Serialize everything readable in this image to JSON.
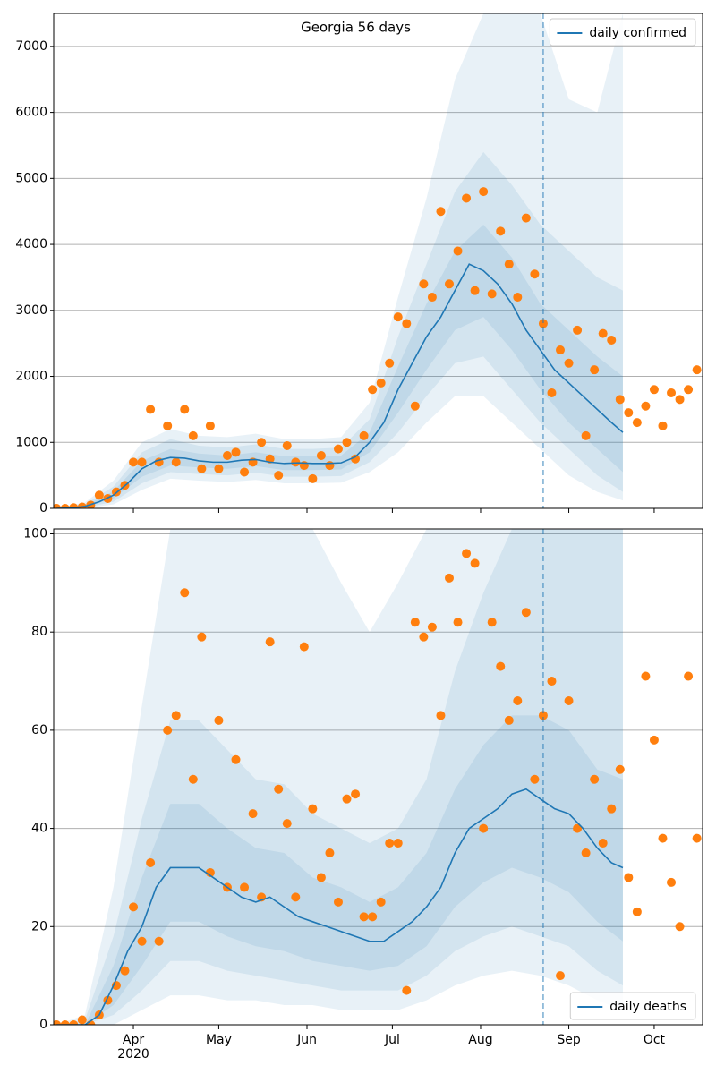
{
  "chart_data": [
    {
      "type": "line",
      "title": "Georgia 56 days",
      "xlim": [
        -1,
        227
      ],
      "xticks": [
        27,
        57,
        88,
        118,
        149,
        180,
        210
      ],
      "xtick_labels": false,
      "ylim": [
        0,
        7500
      ],
      "yticks": [
        0,
        1000,
        2000,
        3000,
        4000,
        5000,
        6000,
        7000
      ],
      "grid": true,
      "legend": "upper right",
      "vline": {
        "x": 171,
        "color": "#1f77b4"
      },
      "bands": [
        {
          "color": "#1f77b4",
          "x": [
            0,
            10,
            20,
            30,
            40,
            50,
            60,
            70,
            80,
            90,
            100,
            110,
            120,
            130,
            140,
            150,
            160,
            170,
            180,
            190,
            199
          ],
          "lower": [
            0,
            5,
            60,
            280,
            450,
            420,
            400,
            430,
            380,
            380,
            390,
            550,
            850,
            1300,
            1700,
            1700,
            1300,
            900,
            500,
            250,
            120
          ],
          "upper": [
            0,
            90,
            420,
            1000,
            1200,
            1100,
            1080,
            1130,
            1050,
            1050,
            1080,
            1600,
            3200,
            4700,
            6500,
            7500,
            7500,
            7500,
            6200,
            6000,
            7500
          ]
        },
        {
          "color": "#1f77b4",
          "x": [
            0,
            10,
            20,
            30,
            40,
            50,
            60,
            70,
            80,
            90,
            100,
            110,
            120,
            130,
            140,
            150,
            160,
            170,
            180,
            190,
            199
          ],
          "lower": [
            0,
            10,
            100,
            380,
            550,
            520,
            500,
            540,
            480,
            480,
            490,
            700,
            1150,
            1700,
            2200,
            2300,
            1800,
            1300,
            900,
            500,
            250
          ],
          "upper": [
            0,
            60,
            330,
            850,
            1050,
            950,
            920,
            970,
            900,
            900,
            920,
            1350,
            2600,
            3700,
            4800,
            5400,
            4900,
            4300,
            3900,
            3500,
            3300
          ]
        },
        {
          "color": "#1f77b4",
          "x": [
            0,
            10,
            20,
            30,
            40,
            50,
            60,
            70,
            80,
            90,
            100,
            110,
            120,
            130,
            140,
            150,
            160,
            170,
            180,
            190,
            199
          ],
          "lower": [
            0,
            20,
            150,
            480,
            650,
            620,
            600,
            640,
            580,
            580,
            590,
            850,
            1450,
            2100,
            2700,
            2900,
            2400,
            1800,
            1300,
            900,
            550
          ],
          "upper": [
            0,
            40,
            260,
            720,
            900,
            830,
            800,
            850,
            790,
            790,
            800,
            1150,
            2150,
            3100,
            3900,
            4300,
            3800,
            3100,
            2700,
            2300,
            2000
          ]
        }
      ],
      "series": [
        {
          "name": "daily confirmed",
          "type": "line",
          "color": "#1f77b4",
          "x": [
            0,
            5,
            10,
            15,
            20,
            25,
            30,
            35,
            40,
            45,
            50,
            55,
            60,
            65,
            70,
            75,
            80,
            85,
            90,
            95,
            100,
            105,
            110,
            115,
            120,
            125,
            130,
            135,
            140,
            145,
            150,
            155,
            160,
            165,
            170,
            175,
            180,
            185,
            190,
            195,
            199
          ],
          "values": [
            0,
            5,
            30,
            100,
            200,
            380,
            600,
            720,
            770,
            760,
            720,
            700,
            700,
            730,
            740,
            700,
            680,
            690,
            680,
            680,
            690,
            780,
            1000,
            1300,
            1800,
            2200,
            2600,
            2900,
            3300,
            3700,
            3600,
            3400,
            3100,
            2700,
            2400,
            2100,
            1900,
            1700,
            1500,
            1300,
            1150
          ]
        },
        {
          "type": "scatter",
          "color": "#ff7f0e",
          "x": [
            0,
            3,
            6,
            9,
            12,
            15,
            18,
            21,
            24,
            27,
            30,
            33,
            36,
            39,
            42,
            45,
            48,
            51,
            54,
            57,
            60,
            63,
            66,
            69,
            72,
            75,
            78,
            81,
            84,
            87,
            90,
            93,
            96,
            99,
            102,
            105,
            108,
            111,
            114,
            117,
            120,
            123,
            126,
            129,
            132,
            135,
            138,
            141,
            144,
            147,
            150,
            153,
            156,
            159,
            162,
            165,
            168,
            171,
            174,
            177,
            180,
            183,
            186,
            189,
            192,
            195,
            198,
            201,
            204,
            207,
            210,
            213,
            216,
            219,
            222,
            225
          ],
          "values": [
            0,
            0,
            10,
            20,
            50,
            200,
            150,
            250,
            350,
            700,
            700,
            1500,
            700,
            1250,
            700,
            1500,
            1100,
            600,
            1250,
            600,
            800,
            850,
            550,
            700,
            1000,
            750,
            500,
            950,
            700,
            650,
            450,
            800,
            650,
            900,
            1000,
            750,
            1100,
            1800,
            1900,
            2200,
            2900,
            2800,
            1550,
            3400,
            3200,
            4500,
            3400,
            3900,
            4700,
            3300,
            4800,
            3250,
            4200,
            3700,
            3200,
            4400,
            3550,
            2800,
            1750,
            2400,
            2200,
            2700,
            1100,
            2100,
            2650,
            2550,
            1650,
            1450,
            1300,
            1550,
            1800,
            1250,
            1750,
            1650,
            1800,
            2100
          ]
        }
      ]
    },
    {
      "type": "line",
      "xlim": [
        -1,
        227
      ],
      "xticks": [
        {
          "value": 27,
          "label": "Apr"
        },
        {
          "value": 57,
          "label": "May"
        },
        {
          "value": 88,
          "label": "Jun"
        },
        {
          "value": 118,
          "label": "Jul"
        },
        {
          "value": 149,
          "label": "Aug"
        },
        {
          "value": 180,
          "label": "Sep"
        },
        {
          "value": 210,
          "label": "Oct"
        }
      ],
      "x_sublabel": "2020",
      "ylim": [
        0,
        101
      ],
      "yticks": [
        0,
        20,
        40,
        60,
        80,
        100
      ],
      "grid": true,
      "legend": "lower right",
      "vline": {
        "x": 171,
        "color": "#1f77b4"
      },
      "bands": [
        {
          "color": "#1f77b4",
          "x": [
            0,
            10,
            20,
            30,
            40,
            50,
            60,
            70,
            80,
            90,
            100,
            110,
            120,
            130,
            140,
            150,
            160,
            170,
            180,
            190,
            199
          ],
          "lower": [
            0,
            0,
            0,
            3,
            6,
            6,
            5,
            5,
            4,
            4,
            3,
            3,
            3,
            5,
            8,
            10,
            11,
            10,
            8,
            5,
            3
          ],
          "upper": [
            0,
            2,
            28,
            65,
            101,
            101,
            101,
            101,
            101,
            101,
            90,
            80,
            90,
            101,
            101,
            101,
            101,
            101,
            101,
            101,
            101
          ]
        },
        {
          "color": "#1f77b4",
          "x": [
            0,
            10,
            20,
            30,
            40,
            50,
            60,
            70,
            80,
            90,
            100,
            110,
            120,
            130,
            140,
            150,
            160,
            170,
            180,
            190,
            199
          ],
          "lower": [
            0,
            0,
            2,
            7,
            13,
            13,
            11,
            10,
            9,
            8,
            7,
            7,
            7,
            10,
            15,
            18,
            20,
            18,
            16,
            11,
            8
          ],
          "upper": [
            0,
            1,
            18,
            42,
            62,
            62,
            56,
            50,
            49,
            43,
            40,
            37,
            40,
            50,
            72,
            88,
            101,
            101,
            101,
            101,
            101
          ]
        },
        {
          "color": "#1f77b4",
          "x": [
            0,
            10,
            20,
            30,
            40,
            50,
            60,
            70,
            80,
            90,
            100,
            110,
            120,
            130,
            140,
            150,
            160,
            170,
            180,
            190,
            199
          ],
          "lower": [
            0,
            0,
            4,
            12,
            21,
            21,
            18,
            16,
            15,
            13,
            12,
            11,
            12,
            16,
            24,
            29,
            32,
            30,
            27,
            21,
            17
          ],
          "upper": [
            0,
            0,
            12,
            30,
            45,
            45,
            40,
            36,
            35,
            30,
            28,
            25,
            28,
            35,
            48,
            57,
            63,
            63,
            60,
            52,
            50
          ]
        }
      ],
      "series": [
        {
          "name": "daily deaths",
          "type": "line",
          "color": "#1f77b4",
          "x": [
            0,
            5,
            10,
            15,
            20,
            25,
            30,
            35,
            40,
            45,
            50,
            55,
            60,
            65,
            70,
            75,
            80,
            85,
            90,
            95,
            100,
            105,
            110,
            115,
            120,
            125,
            130,
            135,
            140,
            145,
            150,
            155,
            160,
            165,
            170,
            175,
            180,
            185,
            190,
            195,
            199
          ],
          "values": [
            0,
            0,
            0,
            2,
            8,
            15,
            20,
            28,
            32,
            32,
            32,
            30,
            28,
            26,
            25,
            26,
            24,
            22,
            21,
            20,
            19,
            18,
            17,
            17,
            19,
            21,
            24,
            28,
            35,
            40,
            42,
            44,
            47,
            48,
            46,
            44,
            43,
            40,
            36,
            33,
            32
          ]
        },
        {
          "type": "scatter",
          "color": "#ff7f0e",
          "x": [
            0,
            3,
            6,
            9,
            12,
            15,
            18,
            21,
            24,
            27,
            30,
            33,
            36,
            39,
            42,
            45,
            48,
            51,
            54,
            57,
            60,
            63,
            66,
            69,
            72,
            75,
            78,
            81,
            84,
            87,
            90,
            93,
            96,
            99,
            102,
            105,
            108,
            111,
            114,
            117,
            120,
            123,
            126,
            129,
            132,
            135,
            138,
            141,
            144,
            147,
            150,
            153,
            156,
            159,
            162,
            165,
            168,
            171,
            174,
            177,
            180,
            183,
            186,
            189,
            192,
            195,
            198,
            201,
            204,
            207,
            210,
            213,
            216,
            219,
            222,
            225
          ],
          "values": [
            0,
            0,
            0,
            1,
            0,
            2,
            5,
            8,
            11,
            24,
            17,
            33,
            17,
            60,
            63,
            88,
            50,
            79,
            31,
            62,
            28,
            54,
            28,
            43,
            26,
            78,
            48,
            41,
            26,
            77,
            44,
            30,
            35,
            25,
            46,
            47,
            22,
            22,
            25,
            37,
            37,
            7,
            82,
            79,
            81,
            63,
            91,
            82,
            96,
            94,
            40,
            82,
            73,
            62,
            66,
            84,
            50,
            63,
            70,
            10,
            66,
            40,
            35,
            50,
            37,
            44,
            52,
            30,
            23,
            71,
            58,
            38,
            29,
            20,
            71,
            38
          ]
        }
      ]
    }
  ]
}
